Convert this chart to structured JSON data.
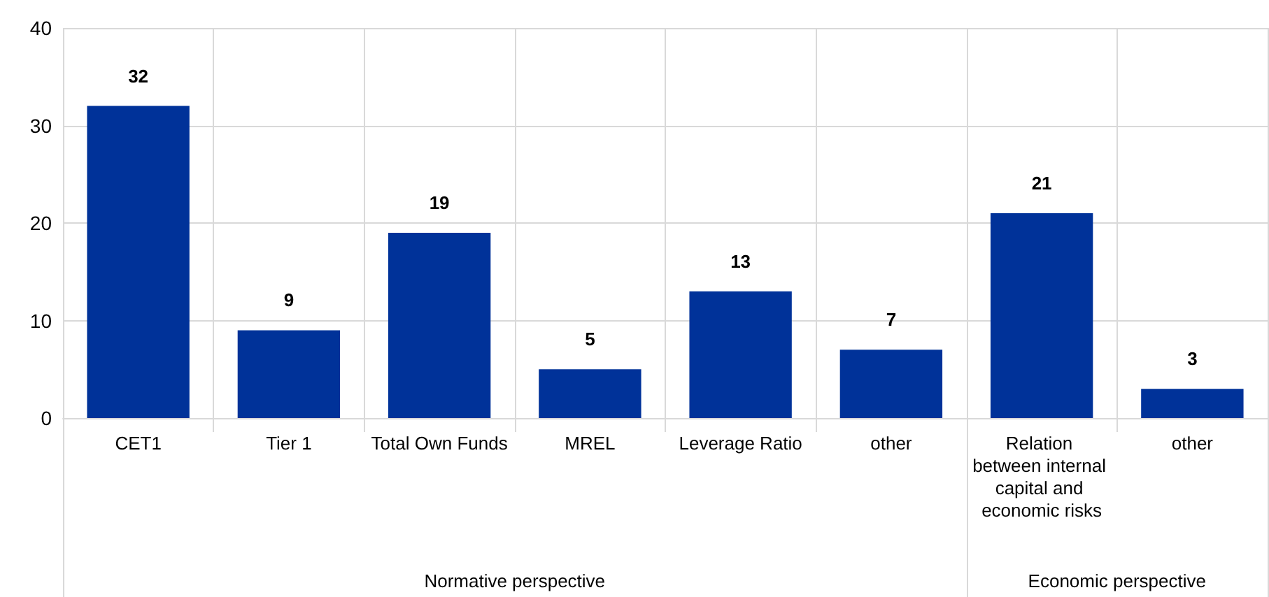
{
  "chart_data": {
    "type": "bar",
    "categories": [
      "CET1",
      "Tier 1",
      "Total Own Funds",
      "MREL",
      "Leverage Ratio",
      "other",
      "Relation between internal capital and economic risks",
      "other"
    ],
    "values": [
      32,
      9,
      19,
      5,
      13,
      7,
      21,
      3
    ],
    "color": "#003299",
    "ylim": [
      0,
      40
    ],
    "yticks": [
      0,
      10,
      20,
      30,
      40
    ],
    "grid": true,
    "data_labels": true,
    "annotations": [
      "Normative perspective",
      "Economic perspective"
    ]
  }
}
